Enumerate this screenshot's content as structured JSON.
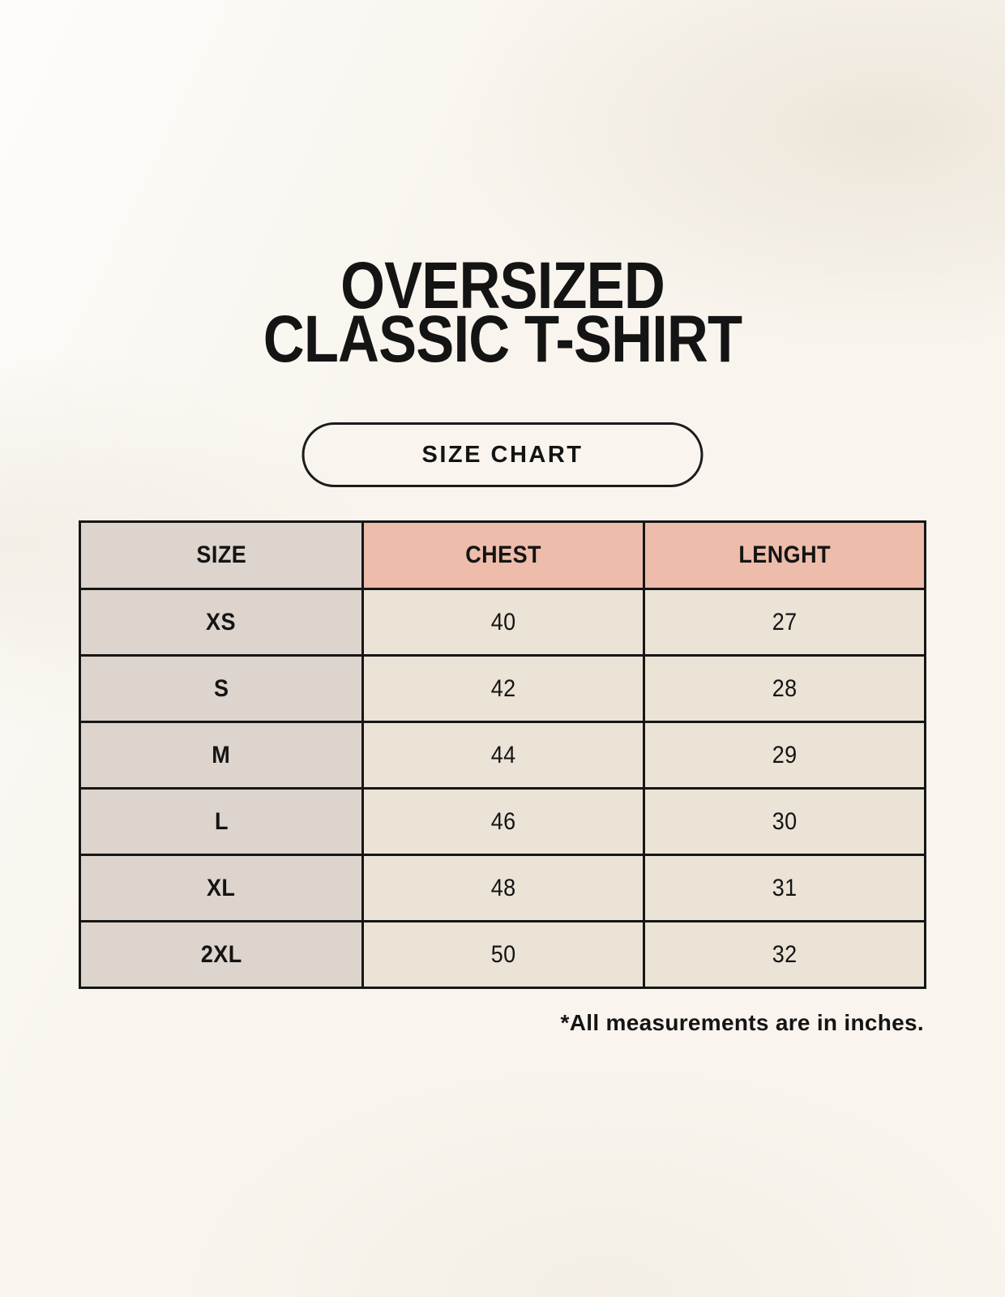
{
  "header": {
    "title_line1": "OVERSIZED",
    "title_line2": "CLASSIC T-SHIRT",
    "badge_label": "SIZE CHART"
  },
  "chart_data": {
    "type": "table",
    "title": "OVERSIZED CLASSIC T-SHIRT",
    "columns": [
      "SIZE",
      "CHEST",
      "LENGHT"
    ],
    "rows": [
      [
        "XS",
        40,
        27
      ],
      [
        "S",
        42,
        28
      ],
      [
        "M",
        44,
        29
      ],
      [
        "L",
        46,
        30
      ],
      [
        "XL",
        48,
        31
      ],
      [
        "2XL",
        50,
        32
      ]
    ],
    "units_note": "*All measurements are in inches."
  },
  "colors": {
    "background": "#f9f5ee",
    "header_gray": "#dcd4cd",
    "header_pink": "#edbcab",
    "cell_cream": "#eae3d6",
    "border": "#161616",
    "text": "#141414"
  }
}
